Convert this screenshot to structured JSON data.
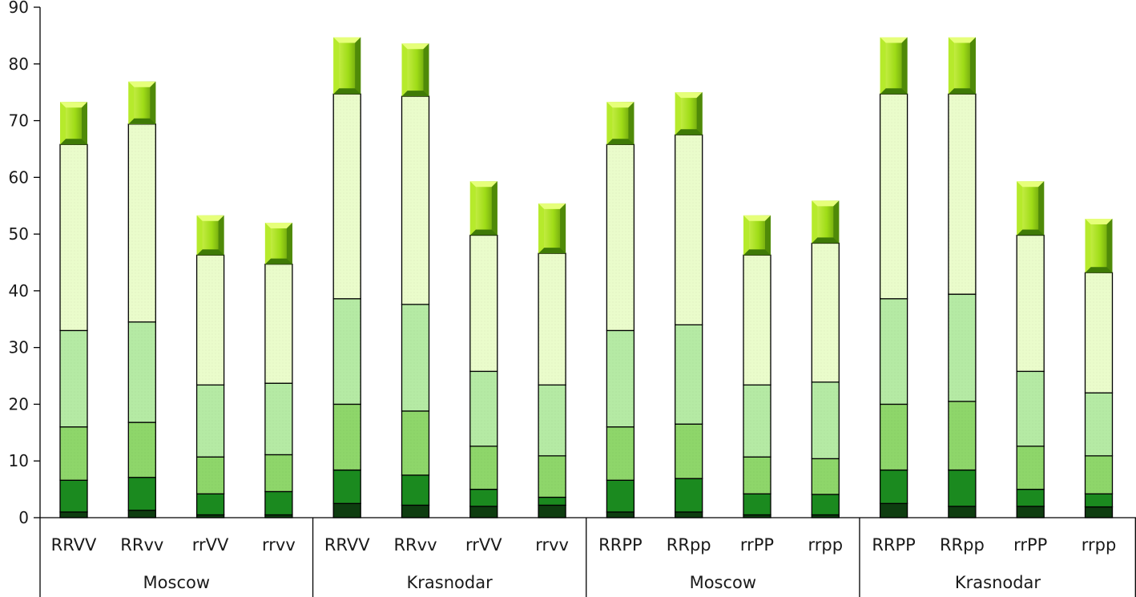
{
  "chart_data": {
    "type": "bar",
    "stacked": true,
    "title": "",
    "xlabel": "",
    "ylabel": "",
    "ylim": [
      0,
      90
    ],
    "yticks": [
      0,
      10,
      20,
      30,
      40,
      50,
      60,
      70,
      80,
      90
    ],
    "grid": false,
    "legend": "none",
    "categories": [
      "RRVV",
      "RRvv",
      "rrVV",
      "rrvv",
      "RRVV",
      "RRvv",
      "rrVV",
      "rrvv",
      "RRPP",
      "RRpp",
      "rrPP",
      "rrpp",
      "RRPP",
      "RRpp",
      "rrPP",
      "rrpp"
    ],
    "groups": [
      {
        "label": "Moscow",
        "start": 0,
        "end": 3
      },
      {
        "label": "Krasnodar",
        "start": 4,
        "end": 7
      },
      {
        "label": "Moscow",
        "start": 8,
        "end": 11
      },
      {
        "label": "Krasnodar",
        "start": 12,
        "end": 15
      }
    ],
    "series": [
      {
        "color": "#0e3d10",
        "values": [
          1.0,
          1.3,
          0.5,
          0.5,
          2.5,
          2.2,
          2.0,
          2.2,
          1.0,
          1.0,
          0.5,
          0.5,
          2.5,
          2.0,
          2.0,
          1.9
        ]
      },
      {
        "color": "#1b8a1f",
        "values": [
          5.6,
          5.8,
          3.7,
          4.1,
          5.9,
          5.3,
          3.0,
          1.4,
          5.6,
          5.9,
          3.7,
          3.6,
          5.9,
          6.4,
          3.0,
          2.3
        ]
      },
      {
        "color": "#8ed66a",
        "values": [
          9.4,
          9.7,
          6.5,
          6.5,
          11.6,
          11.3,
          7.6,
          7.3,
          9.4,
          9.6,
          6.5,
          6.3,
          11.6,
          12.1,
          7.6,
          6.7
        ]
      },
      {
        "color": "#b5eaa4",
        "values": [
          17.0,
          17.7,
          12.7,
          12.6,
          18.6,
          18.8,
          13.2,
          12.5,
          17.0,
          17.5,
          12.7,
          13.5,
          18.6,
          18.9,
          13.2,
          11.1
        ]
      },
      {
        "color": "#eafccb",
        "values": [
          32.8,
          34.9,
          22.9,
          21.0,
          36.1,
          36.7,
          24.0,
          23.2,
          32.8,
          33.5,
          22.9,
          24.5,
          36.1,
          35.3,
          24.0,
          21.2
        ]
      },
      {
        "color": "#8cd617",
        "values": [
          7.5,
          7.5,
          7.0,
          7.3,
          10.0,
          9.3,
          9.5,
          8.8,
          7.5,
          7.5,
          7.0,
          7.5,
          10.0,
          10.0,
          9.5,
          9.5
        ]
      }
    ]
  },
  "axis": {
    "y_tick_labels": [
      "0",
      "10",
      "20",
      "30",
      "40",
      "50",
      "60",
      "70",
      "80",
      "90"
    ]
  }
}
